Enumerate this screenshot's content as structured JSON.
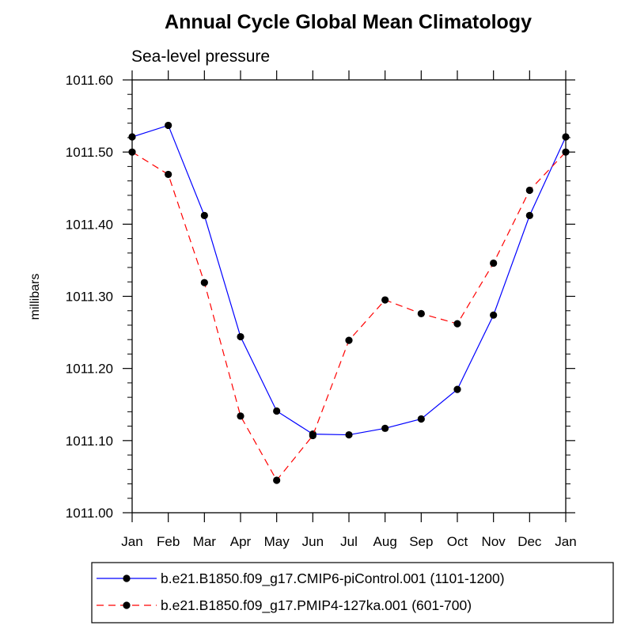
{
  "chart_data": {
    "type": "line",
    "title": "Annual Cycle Global Mean Climatology",
    "subtitle": "Sea-level pressure",
    "ylabel": "millibars",
    "xlabel": "",
    "categories": [
      "Jan",
      "Feb",
      "Mar",
      "Apr",
      "May",
      "Jun",
      "Jul",
      "Aug",
      "Sep",
      "Oct",
      "Nov",
      "Dec",
      "Jan"
    ],
    "ylim": [
      1011.0,
      1011.6
    ],
    "yticks": [
      1011.0,
      1011.1,
      1011.2,
      1011.3,
      1011.4,
      1011.5,
      1011.6
    ],
    "ytick_labels": [
      "1011.00",
      "1011.10",
      "1011.20",
      "1011.30",
      "1011.40",
      "1011.50",
      "1011.60"
    ],
    "grid": false,
    "legend_position": "bottom",
    "series": [
      {
        "name": "b.e21.B1850.f09_g17.CMIP6-piControl.001 (1101-1200)",
        "color": "#0000ff",
        "dash": "solid",
        "marker": "filled-circle",
        "values": [
          1011.521,
          1011.537,
          1011.412,
          1011.244,
          1011.141,
          1011.109,
          1011.108,
          1011.117,
          1011.13,
          1011.171,
          1011.274,
          1011.412,
          1011.521
        ]
      },
      {
        "name": "b.e21.B1850.f09_g17.PMIP4-127ka.001 (601-700)",
        "color": "#ff0000",
        "dash": "dashed",
        "marker": "filled-circle",
        "values": [
          1011.5,
          1011.469,
          1011.319,
          1011.134,
          1011.045,
          1011.107,
          1011.239,
          1011.295,
          1011.276,
          1011.262,
          1011.346,
          1011.447,
          1011.5
        ]
      }
    ]
  }
}
